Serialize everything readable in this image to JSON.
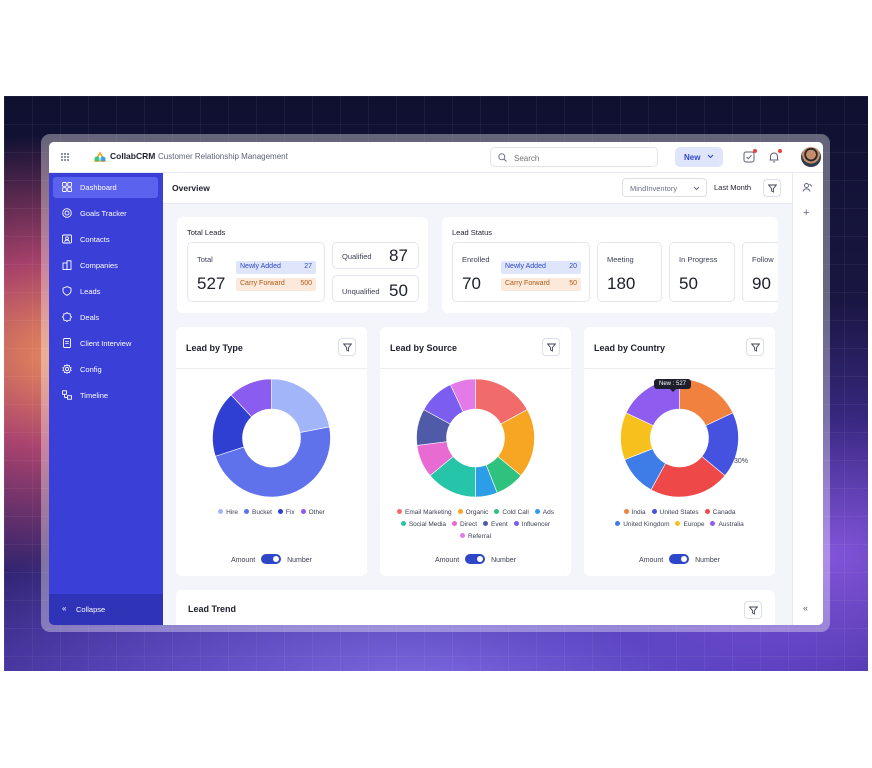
{
  "app": {
    "brand": "CollabCRM",
    "subtitle": "Customer Relationship Management"
  },
  "topbar": {
    "search_placeholder": "Search",
    "new_label": "New"
  },
  "sidebar": {
    "items": [
      {
        "label": "Dashboard",
        "icon": "dashboard-icon",
        "active": true
      },
      {
        "label": "Goals Tracker",
        "icon": "target-icon"
      },
      {
        "label": "Contacts",
        "icon": "contact-card-icon"
      },
      {
        "label": "Companies",
        "icon": "building-icon"
      },
      {
        "label": "Leads",
        "icon": "shield-icon"
      },
      {
        "label": "Deals",
        "icon": "badge-icon"
      },
      {
        "label": "Client Interview",
        "icon": "document-icon"
      },
      {
        "label": "Config",
        "icon": "gear-icon"
      },
      {
        "label": "Timeline",
        "icon": "timeline-icon"
      }
    ],
    "collapse_label": "Collapse"
  },
  "overview": {
    "title": "Overview",
    "company": "MindInventory",
    "period": "Last Month"
  },
  "total_leads": {
    "title": "Total Leads",
    "total_label": "Total",
    "total_value": "527",
    "newly_added_label": "Newly Added",
    "newly_added_value": "27",
    "carry_forward_label": "Carry Forward",
    "carry_forward_value": "500",
    "qualified_label": "Qualified",
    "qualified_value": "87",
    "unqualified_label": "Unqualified",
    "unqualified_value": "50"
  },
  "lead_status": {
    "title": "Lead Status",
    "enrolled_label": "Enrolled",
    "enrolled_value": "70",
    "newly_added_label": "Newly Added",
    "newly_added_value": "20",
    "carry_forward_label": "Carry Forward",
    "carry_forward_value": "50",
    "meeting_label": "Meeting",
    "meeting_value": "180",
    "in_progress_label": "In Progress",
    "in_progress_value": "50",
    "follow_label": "Follow",
    "follow_value": "90"
  },
  "toggle": {
    "left": "Amount",
    "right": "Number"
  },
  "lead_trend": {
    "title": "Lead Trend"
  },
  "chart_data": [
    {
      "type": "pie",
      "title": "Lead by Type",
      "categories": [
        "Hire",
        "Bucket",
        "Fix",
        "Other"
      ],
      "values": [
        22,
        48,
        18,
        12
      ],
      "colors": [
        "#a3b5f9",
        "#5f72ec",
        "#2f3fd1",
        "#8a5cf0"
      ]
    },
    {
      "type": "pie",
      "title": "Lead by Source",
      "categories": [
        "Email Marketing",
        "Organic",
        "Cold Call",
        "Ads",
        "Social Media",
        "Direct",
        "Event",
        "Influencer",
        "Referral"
      ],
      "values": [
        17,
        19,
        8,
        6,
        14,
        9,
        10,
        10,
        7
      ],
      "colors": [
        "#f26b6b",
        "#f6a623",
        "#2ec27e",
        "#2c9ee8",
        "#26c4a8",
        "#e86ad3",
        "#4f5aa8",
        "#7b5df0",
        "#e47ae8"
      ]
    },
    {
      "type": "pie",
      "title": "Lead by Country",
      "categories": [
        "India",
        "United States",
        "Canada",
        "United Kingdom",
        "Europe",
        "Australia"
      ],
      "values": [
        18,
        18,
        22,
        11,
        13,
        18
      ],
      "colors": [
        "#f0813f",
        "#4552e0",
        "#ee4848",
        "#3e7de8",
        "#f6c11c",
        "#8f5cf0"
      ],
      "annotations": [
        {
          "text": "New : 527"
        },
        {
          "text": "30%"
        }
      ]
    }
  ]
}
